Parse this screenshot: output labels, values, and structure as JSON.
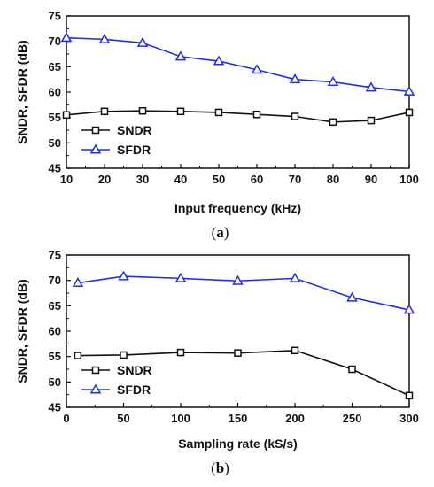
{
  "chart_data": [
    {
      "type": "line",
      "panel_label": "a",
      "title": "",
      "xlabel": "Input frequency (kHz)",
      "ylabel": "SNDR, SFDR (dB)",
      "xlim": [
        10,
        100
      ],
      "ylim": [
        45,
        75
      ],
      "xticks": [
        10,
        20,
        30,
        40,
        50,
        60,
        70,
        80,
        90,
        100
      ],
      "yticks": [
        45,
        50,
        55,
        60,
        65,
        70,
        75
      ],
      "x": [
        10,
        20,
        30,
        40,
        50,
        60,
        70,
        80,
        90,
        100
      ],
      "legend_position": "lower-left",
      "series": [
        {
          "name": "SNDR",
          "marker": "square",
          "color": "#111111",
          "values": [
            55.5,
            56.2,
            56.3,
            56.2,
            56.0,
            55.6,
            55.2,
            54.1,
            54.4,
            56.0
          ]
        },
        {
          "name": "SFDR",
          "marker": "triangle",
          "color": "#1f2fe0",
          "values": [
            70.7,
            70.4,
            69.7,
            67.0,
            66.1,
            64.4,
            62.5,
            62.0,
            60.9,
            60.1
          ]
        }
      ]
    },
    {
      "type": "line",
      "panel_label": "b",
      "title": "",
      "xlabel": "Sampling rate (kS/s)",
      "ylabel": "SNDR, SFDR (dB)",
      "xlim": [
        0,
        300
      ],
      "ylim": [
        45,
        75
      ],
      "xticks": [
        0,
        50,
        100,
        150,
        200,
        250,
        300
      ],
      "yticks": [
        45,
        50,
        55,
        60,
        65,
        70,
        75
      ],
      "x": [
        10,
        50,
        100,
        150,
        200,
        250,
        300
      ],
      "legend_position": "lower-left",
      "series": [
        {
          "name": "SNDR",
          "marker": "square",
          "color": "#111111",
          "values": [
            55.2,
            55.3,
            55.8,
            55.7,
            56.2,
            52.5,
            47.3
          ]
        },
        {
          "name": "SFDR",
          "marker": "triangle",
          "color": "#1f2fe0",
          "values": [
            69.5,
            70.8,
            70.4,
            69.9,
            70.4,
            66.6,
            64.2
          ]
        }
      ]
    }
  ]
}
